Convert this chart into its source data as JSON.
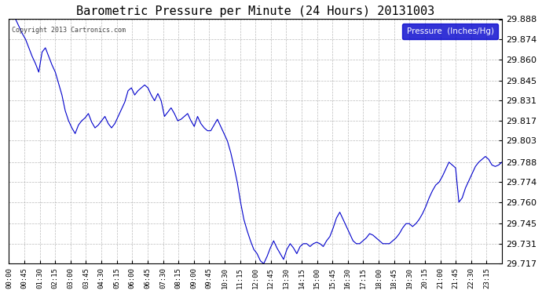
{
  "title": "Barometric Pressure per Minute (24 Hours) 20131003",
  "copyright": "Copyright 2013 Cartronics.com",
  "legend_label": "Pressure  (Inches/Hg)",
  "line_color": "#0000cc",
  "bg_color": "#ffffff",
  "grid_color": "#aaaaaa",
  "ylim": [
    29.717,
    29.888
  ],
  "yticks": [
    29.717,
    29.731,
    29.745,
    29.76,
    29.774,
    29.788,
    29.803,
    29.817,
    29.831,
    29.845,
    29.86,
    29.874,
    29.888
  ],
  "xtick_labels": [
    "00:00",
    "00:45",
    "01:30",
    "02:15",
    "03:00",
    "03:45",
    "04:30",
    "05:15",
    "06:00",
    "06:45",
    "07:30",
    "08:15",
    "09:00",
    "09:45",
    "10:30",
    "11:15",
    "12:00",
    "12:45",
    "13:30",
    "14:15",
    "15:00",
    "15:45",
    "16:30",
    "17:15",
    "18:00",
    "18:45",
    "19:30",
    "20:15",
    "21:00",
    "21:45",
    "22:30",
    "23:15"
  ],
  "pressure_data": [
    29.895,
    29.892,
    29.888,
    29.883,
    29.878,
    29.874,
    29.868,
    29.862,
    29.857,
    29.851,
    29.865,
    29.868,
    29.862,
    29.856,
    29.851,
    29.843,
    29.835,
    29.824,
    29.817,
    29.812,
    29.808,
    29.814,
    29.817,
    29.819,
    29.822,
    29.816,
    29.812,
    29.814,
    29.817,
    29.82,
    29.815,
    29.812,
    29.815,
    29.82,
    29.825,
    29.83,
    29.838,
    29.84,
    29.835,
    29.838,
    29.84,
    29.842,
    29.84,
    29.835,
    29.831,
    29.836,
    29.831,
    29.82,
    29.823,
    29.826,
    29.822,
    29.817,
    29.818,
    29.82,
    29.822,
    29.817,
    29.813,
    29.82,
    29.815,
    29.812,
    29.81,
    29.81,
    29.814,
    29.818,
    29.813,
    29.808,
    29.803,
    29.795,
    29.785,
    29.774,
    29.76,
    29.748,
    29.74,
    29.733,
    29.727,
    29.724,
    29.719,
    29.717,
    29.722,
    29.728,
    29.733,
    29.728,
    29.724,
    29.72,
    29.727,
    29.731,
    29.728,
    29.724,
    29.729,
    29.731,
    29.731,
    29.729,
    29.731,
    29.732,
    29.731,
    29.729,
    29.733,
    29.736,
    29.742,
    29.749,
    29.753,
    29.748,
    29.743,
    29.738,
    29.733,
    29.731,
    29.731,
    29.733,
    29.735,
    29.738,
    29.737,
    29.735,
    29.733,
    29.731,
    29.731,
    29.731,
    29.733,
    29.735,
    29.738,
    29.742,
    29.745,
    29.745,
    29.743,
    29.745,
    29.748,
    29.752,
    29.757,
    29.763,
    29.768,
    29.772,
    29.774,
    29.778,
    29.783,
    29.788,
    29.786,
    29.784,
    29.76,
    29.763,
    29.77,
    29.775,
    29.78,
    29.785,
    29.788,
    29.79,
    29.792,
    29.79,
    29.786,
    29.785,
    29.786,
    29.788
  ]
}
